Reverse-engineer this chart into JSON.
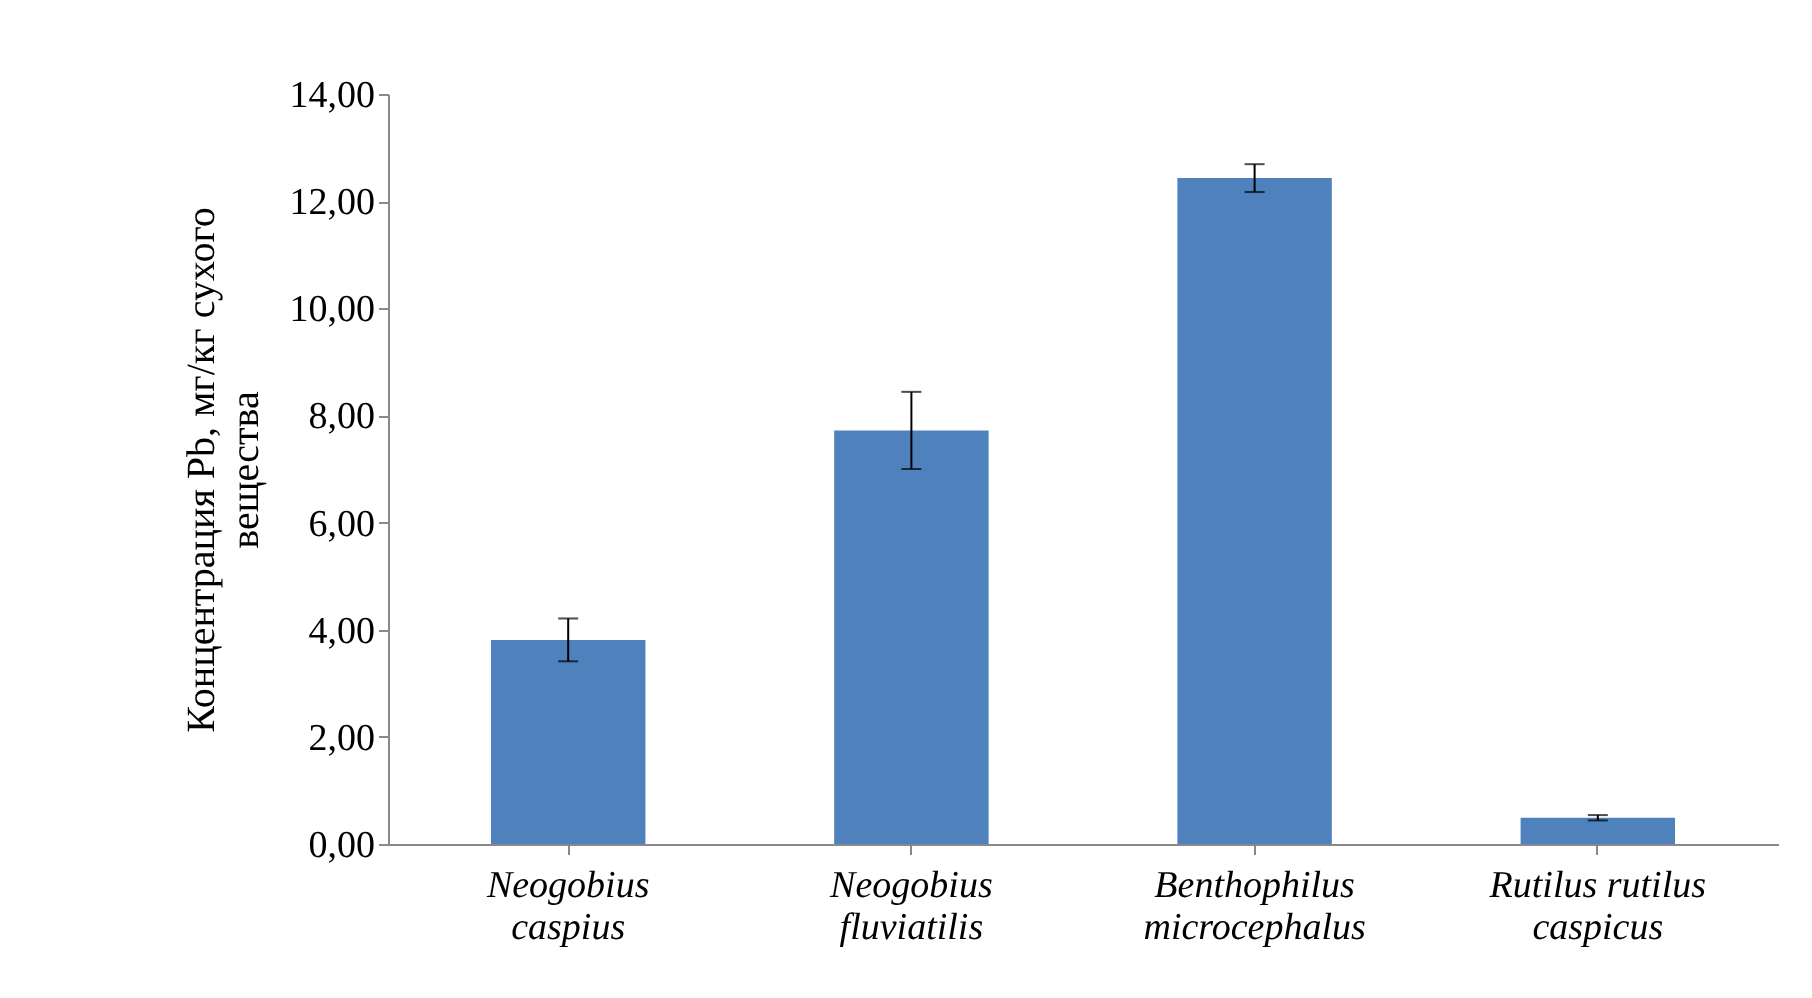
{
  "chart_data": {
    "type": "bar",
    "ylabel": "Концентрация Pb, мг/кг сухого\nвещества",
    "categories": [
      "Neogobius\ncaspius",
      "Neogobius\nfluviatilis",
      "Benthophilus\nmicrocephalus",
      "Rutilus rutilus\ncaspicus"
    ],
    "values": [
      3.81,
      7.72,
      12.43,
      0.49
    ],
    "errors": [
      0.4,
      0.72,
      0.26,
      0.05
    ],
    "color": "#4f81bd",
    "ylim": [
      0,
      14
    ],
    "yticks": [
      {
        "value": 0,
        "label": "0,00"
      },
      {
        "value": 2,
        "label": "2,00"
      },
      {
        "value": 4,
        "label": "4,00"
      },
      {
        "value": 6,
        "label": "6,00"
      },
      {
        "value": 8,
        "label": "8,00"
      },
      {
        "value": 10,
        "label": "10,00"
      },
      {
        "value": 12,
        "label": "12,00"
      },
      {
        "value": 14,
        "label": "14,00"
      }
    ],
    "grid": false
  }
}
